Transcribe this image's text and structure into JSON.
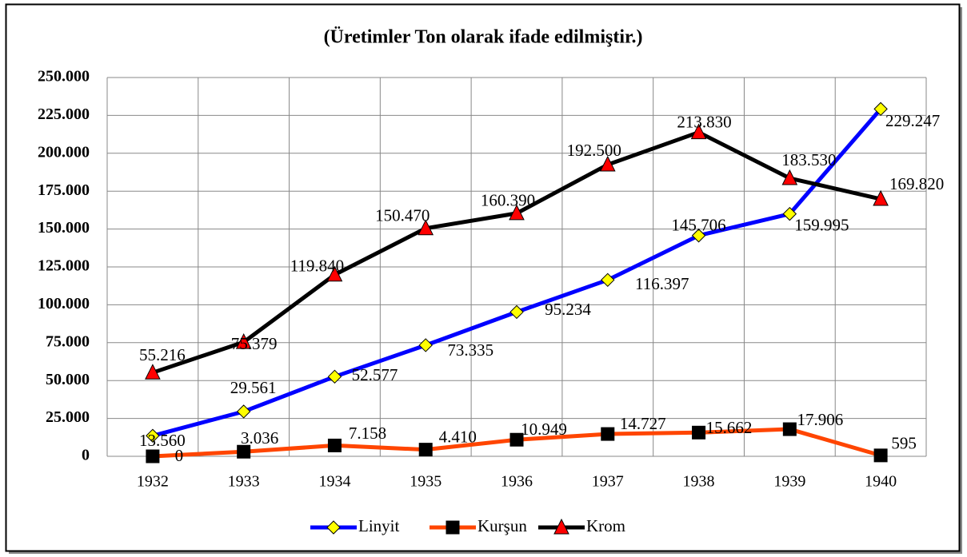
{
  "chart_data": {
    "type": "line",
    "title": "(Üretimler Ton olarak ifade edilmiştir.)",
    "categories": [
      "1932",
      "1933",
      "1934",
      "1935",
      "1936",
      "1937",
      "1938",
      "1939",
      "1940"
    ],
    "series": [
      {
        "name": "Linyit",
        "color": "#0000ff",
        "marker": "diamond",
        "marker_color": "#ffff00",
        "values": [
          13560,
          29561,
          52577,
          73335,
          95234,
          116397,
          145706,
          159995,
          229247
        ],
        "value_labels": [
          "13.560",
          "29.561",
          "52.577",
          "73.335",
          "95.234",
          "116.397",
          "145.706",
          "159.995",
          "229.247"
        ]
      },
      {
        "name": "Kurşun",
        "color": "#ff4500",
        "marker": "square",
        "marker_color": "#000000",
        "values": [
          0,
          3036,
          7158,
          4410,
          10949,
          14727,
          15662,
          17906,
          595
        ],
        "value_labels": [
          "0",
          "3.036",
          "7.158",
          "4.410",
          "10.949",
          "14.727",
          "15.662",
          "17.906",
          "595"
        ]
      },
      {
        "name": "Krom",
        "color": "#000000",
        "marker": "triangle",
        "marker_color": "#ff0000",
        "values": [
          55216,
          75379,
          119840,
          150470,
          160390,
          192500,
          213830,
          183530,
          169820
        ],
        "value_labels": [
          "55.216",
          "75.379",
          "119.840",
          "150.470",
          "160.390",
          "192.500",
          "213.830",
          "183.530",
          "169.820"
        ]
      }
    ],
    "ylim": [
      0,
      250000
    ],
    "yticks": [
      0,
      {
        "value": 25000,
        "label": "25.000"
      },
      {
        "value": 50000,
        "label": "50.000"
      },
      {
        "value": 75000,
        "label": "75.000"
      },
      {
        "value": 100000,
        "label": "100.000"
      },
      {
        "value": 125000,
        "label": "125.000"
      },
      {
        "value": 150000,
        "label": "150.000"
      },
      {
        "value": 175000,
        "label": "175.000"
      },
      {
        "value": 200000,
        "label": "200.000"
      },
      {
        "value": 225000,
        "label": "225.000"
      },
      {
        "value": 250000,
        "label": "250.000"
      }
    ],
    "grid": true,
    "legend": "bottom"
  }
}
